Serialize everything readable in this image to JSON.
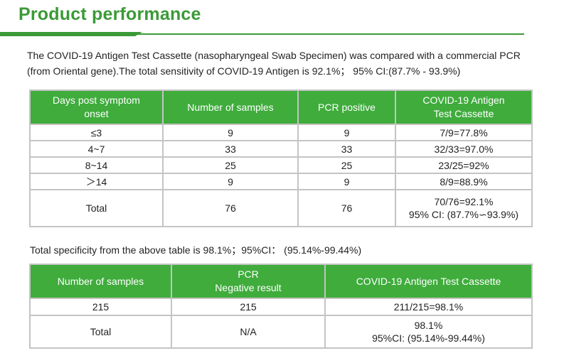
{
  "title": "Product performance",
  "intro": "The COVID-19 Antigen Test Cassette (nasopharyngeal Swab Specimen) was compared with a commercial PCR (from Oriental gene).The total sensitivity of COVID-19 Antigen is 92.1%； 95% CI:(87.7% - 93.9%)",
  "table1": {
    "headers": [
      "Days post symptom\nonset",
      "Number of samples",
      "PCR positive",
      "COVID-19 Antigen\nTest Cassette"
    ],
    "rows": [
      [
        "≤3",
        "9",
        "9",
        "7/9=77.8%"
      ],
      [
        "4~7",
        "33",
        "33",
        "32/33=97.0%"
      ],
      [
        "8~14",
        "25",
        "25",
        "23/25=92%"
      ],
      [
        "＞14",
        "9",
        "9",
        "8/9=88.9%"
      ],
      [
        "Total",
        "76",
        "76",
        "70/76=92.1%\n95% CI: (87.7%∽93.9%)"
      ]
    ]
  },
  "specificity": "Total specificity from the above table is 98.1%；95%CI：  (95.14%-99.44%)",
  "table2": {
    "headers": [
      "Number of samples",
      "PCR\nNegative result",
      "COVID-19 Antigen Test Cassette"
    ],
    "rows": [
      [
        "215",
        "215",
        "211/215=98.1%"
      ],
      [
        "Total",
        "N/A",
        "98.1%\n95%CI: (95.14%-99.44%)"
      ]
    ]
  },
  "colors": {
    "accent_green": "#3a9a36",
    "header_green": "#3fac3c",
    "border_gray": "#c4c4c4"
  }
}
